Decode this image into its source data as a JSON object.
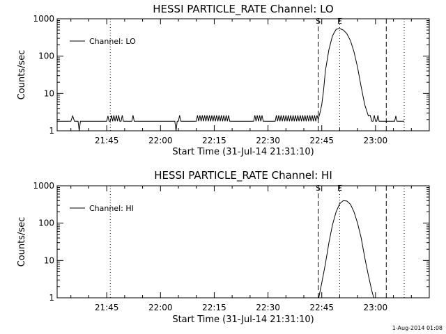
{
  "footer_timestamp": "1-Aug-2014 01:08",
  "chart_data": [
    {
      "type": "line",
      "title": "HESSI PARTICLE_RATE Channel: LO",
      "xlabel": "Start Time (31-Jul-14 21:31:10)",
      "ylabel": "Counts/sec",
      "y_scale": "log",
      "ylim": [
        1,
        1000
      ],
      "xlim": [
        "21:31:10",
        "23:15:00"
      ],
      "x_ticks": [
        "21:45",
        "22:00",
        "22:15",
        "22:30",
        "22:45",
        "23:00"
      ],
      "y_ticks": [
        "1",
        "10",
        "100",
        "1000"
      ],
      "legend": "top-left",
      "vlines": [
        {
          "x": "21:46:00",
          "style": "dotted",
          "label": ""
        },
        {
          "x": "22:44:00",
          "style": "dashed",
          "label": "S"
        },
        {
          "x": "22:50:00",
          "style": "dotted",
          "label": "E"
        },
        {
          "x": "23:03:00",
          "style": "dashed",
          "label": ""
        },
        {
          "x": "23:08:00",
          "style": "dotted",
          "label": ""
        }
      ],
      "series": [
        {
          "name": "Channel: LO",
          "x": [
            "21:31:10",
            "21:35:00",
            "21:35:30",
            "21:36:00",
            "21:37:00",
            "21:37:20",
            "21:37:40",
            "21:38:00",
            "21:45:00",
            "21:45:20",
            "21:45:40",
            "21:46:00",
            "21:46:20",
            "21:46:40",
            "21:47:00",
            "21:47:20",
            "21:47:40",
            "21:48:00",
            "21:48:20",
            "21:48:40",
            "21:49:00",
            "21:49:20",
            "21:49:40",
            "21:50:00",
            "21:50:20",
            "21:50:40",
            "21:51:00",
            "21:51:20",
            "21:51:40",
            "21:52:00",
            "21:52:20",
            "21:52:40",
            "21:53:00",
            "21:53:20",
            "21:53:40",
            "21:54:00",
            "22:04:00",
            "22:04:20",
            "22:04:40",
            "22:05:00",
            "22:05:20",
            "22:05:40",
            "22:06:00",
            "22:06:20",
            "22:06:40",
            "22:07:00",
            "22:10:00",
            "22:10:20",
            "22:10:40",
            "22:11:00",
            "22:11:20",
            "22:11:40",
            "22:12:00",
            "22:12:20",
            "22:12:40",
            "22:13:00",
            "22:13:20",
            "22:13:40",
            "22:14:00",
            "22:14:20",
            "22:14:40",
            "22:15:00",
            "22:15:20",
            "22:15:40",
            "22:16:00",
            "22:16:20",
            "22:16:40",
            "22:17:00",
            "22:17:20",
            "22:17:40",
            "22:18:00",
            "22:18:20",
            "22:18:40",
            "22:19:00",
            "22:19:20",
            "22:19:40",
            "22:20:00",
            "22:20:20",
            "22:20:40",
            "22:21:00",
            "22:21:20",
            "22:21:40",
            "22:22:00",
            "22:23:00",
            "22:26:00",
            "22:26:20",
            "22:26:40",
            "22:27:00",
            "22:27:20",
            "22:27:40",
            "22:28:00",
            "22:28:20",
            "22:28:40",
            "22:29:00",
            "22:32:00",
            "22:32:20",
            "22:32:40",
            "22:33:00",
            "22:33:20",
            "22:33:40",
            "22:34:00",
            "22:34:20",
            "22:34:40",
            "22:35:00",
            "22:35:20",
            "22:35:40",
            "22:36:00",
            "22:36:20",
            "22:36:40",
            "22:37:00",
            "22:37:20",
            "22:37:40",
            "22:38:00",
            "22:38:20",
            "22:38:40",
            "22:39:00",
            "22:39:20",
            "22:39:40",
            "22:40:00",
            "22:40:20",
            "22:40:40",
            "22:41:00",
            "22:41:20",
            "22:41:40",
            "22:42:00",
            "22:42:20",
            "22:42:40",
            "22:43:00",
            "22:43:20",
            "22:43:40",
            "22:44:00",
            "22:44:30",
            "22:45:00",
            "22:45:30",
            "22:46:00",
            "22:47:00",
            "22:48:00",
            "22:49:00",
            "22:50:00",
            "22:51:00",
            "22:52:00",
            "22:53:00",
            "22:54:00",
            "22:55:00",
            "22:56:00",
            "22:57:00",
            "22:58:00",
            "22:58:30",
            "22:59:00",
            "22:59:20",
            "22:59:40",
            "23:00:00",
            "23:00:20",
            "23:00:40",
            "23:01:00",
            "23:01:20",
            "23:01:40",
            "23:02:00",
            "23:02:20",
            "23:02:40",
            "23:03:00",
            "23:04:00",
            "23:05:00",
            "23:05:20",
            "23:05:40",
            "23:06:00",
            "23:08:00"
          ],
          "values": [
            1.8,
            1.8,
            2.5,
            1.8,
            1.8,
            1,
            1.8,
            1.8,
            1.8,
            2.5,
            1.8,
            1.8,
            2.6,
            1.8,
            2.6,
            1.8,
            2.6,
            1.8,
            2.6,
            1.8,
            1.8,
            2.6,
            1.8,
            1.8,
            1.8,
            1.8,
            1.8,
            1.8,
            1.8,
            1.8,
            2.6,
            1.8,
            1.8,
            1.8,
            1.8,
            1.8,
            1.8,
            1,
            1.8,
            1.8,
            2.6,
            1.8,
            1.8,
            1.8,
            1.8,
            1.8,
            1.8,
            2.6,
            1.8,
            2.6,
            1.8,
            2.6,
            1.8,
            2.6,
            1.8,
            2.6,
            1.8,
            2.6,
            1.8,
            2.6,
            1.8,
            2.6,
            1.8,
            2.6,
            1.8,
            2.6,
            1.8,
            2.6,
            1.8,
            2.6,
            1.8,
            2.6,
            1.8,
            2.6,
            1.8,
            1.8,
            1.8,
            1.8,
            1.8,
            1.8,
            1.8,
            1.8,
            1.8,
            1.8,
            1.8,
            2.6,
            1.8,
            2.6,
            1.8,
            2.6,
            1.8,
            2.6,
            1.8,
            1.8,
            1.8,
            2.6,
            1.8,
            2.6,
            1.8,
            2.6,
            1.8,
            2.6,
            1.8,
            2.6,
            1.8,
            2.6,
            1.8,
            2.6,
            1.8,
            2.6,
            1.8,
            2.6,
            1.8,
            2.6,
            1.8,
            2.6,
            1.8,
            2.6,
            1.8,
            2.6,
            1.8,
            2.6,
            1.8,
            2.6,
            1.8,
            2.6,
            1.8,
            2.6,
            1.8,
            2.6,
            2,
            3,
            5,
            12,
            40,
            150,
            350,
            520,
            550,
            500,
            400,
            260,
            130,
            50,
            15,
            5,
            2.5,
            2.6,
            1.8,
            1.8,
            2.6,
            1.8,
            1.8,
            2.6,
            1.8,
            1.8,
            1.8,
            1.8,
            1.8,
            1.8,
            1.8,
            1.8,
            1.8,
            1.8,
            2.5,
            1.8,
            1.8
          ]
        }
      ]
    },
    {
      "type": "line",
      "title": "HESSI PARTICLE_RATE Channel: HI",
      "xlabel": "Start Time (31-Jul-14 21:31:10)",
      "ylabel": "Counts/sec",
      "y_scale": "log",
      "ylim": [
        1,
        1000
      ],
      "xlim": [
        "21:31:10",
        "23:15:00"
      ],
      "x_ticks": [
        "21:45",
        "22:00",
        "22:15",
        "22:30",
        "22:45",
        "23:00"
      ],
      "y_ticks": [
        "1",
        "10",
        "100",
        "1000"
      ],
      "legend": "top-left",
      "vlines": [
        {
          "x": "21:46:00",
          "style": "dotted",
          "label": ""
        },
        {
          "x": "22:44:00",
          "style": "dashed",
          "label": "S"
        },
        {
          "x": "22:50:00",
          "style": "dotted",
          "label": "E"
        },
        {
          "x": "23:03:00",
          "style": "dashed",
          "label": ""
        },
        {
          "x": "23:08:00",
          "style": "dotted",
          "label": ""
        }
      ],
      "series": [
        {
          "name": "Channel: HI",
          "x": [
            "22:44:10",
            "22:45:00",
            "22:46:00",
            "22:47:00",
            "22:48:00",
            "22:49:00",
            "22:50:00",
            "22:51:00",
            "22:52:00",
            "22:53:00",
            "22:54:00",
            "22:55:00",
            "22:56:00",
            "22:57:00",
            "22:58:00",
            "22:59:00",
            "22:59:30"
          ],
          "values": [
            1,
            2.5,
            8,
            30,
            90,
            200,
            330,
            400,
            390,
            320,
            200,
            100,
            40,
            12,
            4,
            1.5,
            1
          ]
        }
      ]
    }
  ]
}
